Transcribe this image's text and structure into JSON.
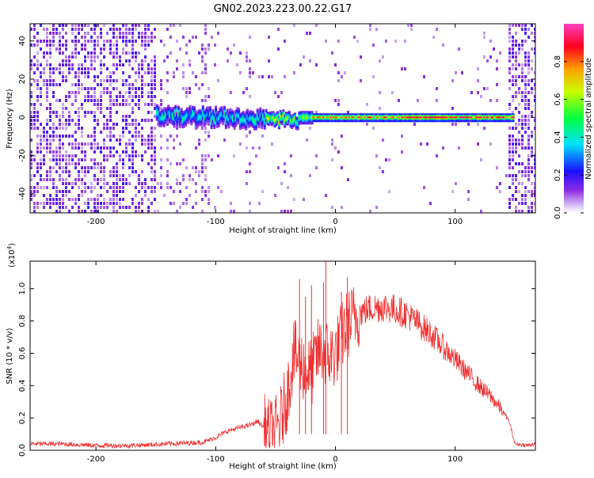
{
  "title": "GN02.2023.223.00.22.G17",
  "chart_data": [
    {
      "type": "heatmap",
      "xlabel": "Height of straight line (km)",
      "ylabel": "Frequency (Hz)",
      "xlim": [
        -255,
        167
      ],
      "ylim": [
        -50,
        49
      ],
      "xticks": [
        -200,
        -100,
        0,
        100
      ],
      "yticks": [
        -40,
        -20,
        0,
        20,
        40
      ],
      "colorbar": {
        "label": "Normalized spectral amplitude",
        "range": [
          0,
          1
        ],
        "ticks": [
          "0.0",
          "0.2",
          "0.4",
          "0.6",
          "0.8"
        ]
      },
      "signal_band": {
        "center_hz": 0,
        "start_km": -150,
        "end_km": 148,
        "strong_from_km": -20,
        "peak_amplitude": 0.95
      }
    },
    {
      "type": "line",
      "xlabel": "Height of straight line (km)",
      "ylabel": "SNR (10 * v/v)",
      "y_multiplier": "(x10",
      "y_multiplier_exp": "4",
      "y_multiplier_close": ")",
      "xlim": [
        -255,
        167
      ],
      "ylim": [
        0,
        1.17
      ],
      "xticks": [
        -200,
        -100,
        0,
        100
      ],
      "yticks": [
        "0.0",
        "0.2",
        "0.4",
        "0.6",
        "0.8",
        "1.0"
      ],
      "color": "#f03030",
      "series": [
        {
          "x": [
            -255,
            -230,
            -200,
            -170,
            -140,
            -110,
            -100,
            -90,
            -80,
            -70,
            -65,
            -60,
            -55,
            -50,
            -45,
            -40,
            -35,
            -30,
            -25,
            -20,
            -15,
            -10,
            -5,
            0,
            5,
            10,
            15,
            20,
            30,
            40,
            50,
            60,
            70,
            80,
            90,
            100,
            110,
            120,
            130,
            140,
            145,
            150,
            160,
            167
          ],
          "values": [
            0.04,
            0.04,
            0.03,
            0.03,
            0.04,
            0.05,
            0.08,
            0.12,
            0.14,
            0.16,
            0.18,
            0.14,
            0.1,
            0.12,
            0.2,
            0.35,
            0.6,
            0.55,
            0.5,
            0.48,
            0.6,
            0.62,
            0.58,
            0.6,
            0.7,
            0.78,
            0.82,
            0.85,
            0.88,
            0.89,
            0.87,
            0.84,
            0.78,
            0.72,
            0.64,
            0.56,
            0.48,
            0.4,
            0.33,
            0.24,
            0.18,
            0.04,
            0.03,
            0.04
          ]
        }
      ],
      "spikes": [
        {
          "x": -30,
          "y": 1.06
        },
        {
          "x": -20,
          "y": 1.02
        },
        {
          "x": -10,
          "y": 1.04
        },
        {
          "x": -8,
          "y": 1.17
        },
        {
          "x": 10,
          "y": 1.07
        },
        {
          "x": -25,
          "y": 0.95
        },
        {
          "x": 5,
          "y": 0.98
        }
      ]
    }
  ]
}
